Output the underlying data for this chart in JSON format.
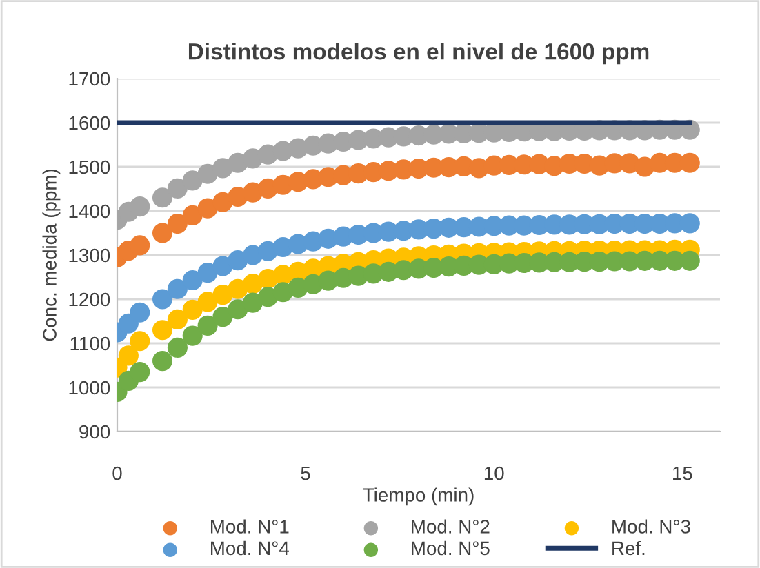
{
  "chart_data": {
    "type": "scatter",
    "title": "Distintos modelos en el nivel de 1600 ppm",
    "xlabel": "Tiempo (min)",
    "ylabel": "Conc. medida (ppm)",
    "x": [
      0,
      0.3,
      0.6,
      1.2,
      1.6,
      2.0,
      2.4,
      2.8,
      3.2,
      3.6,
      4.0,
      4.4,
      4.8,
      5.2,
      5.6,
      6.0,
      6.4,
      6.8,
      7.2,
      7.6,
      8.0,
      8.4,
      8.8,
      9.2,
      9.6,
      10.0,
      10.4,
      10.8,
      11.2,
      11.6,
      12.0,
      12.4,
      12.8,
      13.2,
      13.6,
      14.0,
      14.4,
      14.8,
      15.2
    ],
    "series": [
      {
        "name": "Mod. N°1",
        "color": "#ed7d31",
        "values": [
          1295,
          1310,
          1322,
          1350,
          1371,
          1390,
          1406,
          1420,
          1432,
          1442,
          1451,
          1459,
          1466,
          1472,
          1477,
          1481,
          1485,
          1488,
          1491,
          1494,
          1496,
          1498,
          1499,
          1501,
          1497,
          1503,
          1504,
          1505,
          1506,
          1502,
          1507,
          1507,
          1503,
          1508,
          1508,
          1500,
          1509,
          1509,
          1509
        ]
      },
      {
        "name": "Mod. N°2",
        "color": "#a5a5a5",
        "values": [
          1380,
          1398,
          1410,
          1430,
          1451,
          1469,
          1484,
          1497,
          1509,
          1519,
          1528,
          1536,
          1542,
          1548,
          1553,
          1557,
          1561,
          1564,
          1567,
          1569,
          1571,
          1573,
          1575,
          1576,
          1577,
          1578,
          1579,
          1580,
          1581,
          1581,
          1582,
          1582,
          1583,
          1583,
          1583,
          1583,
          1584,
          1584,
          1584
        ]
      },
      {
        "name": "Mod. N°3",
        "color": "#ffc000",
        "values": [
          1045,
          1072,
          1105,
          1130,
          1154,
          1176,
          1194,
          1210,
          1223,
          1235,
          1246,
          1255,
          1262,
          1269,
          1275,
          1280,
          1284,
          1288,
          1292,
          1294,
          1297,
          1299,
          1301,
          1303,
          1304,
          1305,
          1306,
          1307,
          1308,
          1309,
          1309,
          1310,
          1310,
          1310,
          1311,
          1311,
          1311,
          1312,
          1312
        ]
      },
      {
        "name": "Mod. N°4",
        "color": "#5b9bd5",
        "values": [
          1125,
          1145,
          1170,
          1200,
          1223,
          1243,
          1260,
          1275,
          1288,
          1300,
          1309,
          1318,
          1325,
          1331,
          1337,
          1342,
          1346,
          1350,
          1353,
          1355,
          1358,
          1360,
          1362,
          1363,
          1364,
          1366,
          1367,
          1367,
          1368,
          1369,
          1369,
          1370,
          1370,
          1371,
          1371,
          1371,
          1371,
          1372,
          1372
        ]
      },
      {
        "name": "Mod. N°5",
        "color": "#70ad47",
        "values": [
          990,
          1015,
          1035,
          1060,
          1090,
          1117,
          1140,
          1160,
          1177,
          1192,
          1205,
          1216,
          1226,
          1234,
          1242,
          1248,
          1253,
          1258,
          1262,
          1266,
          1269,
          1271,
          1274,
          1276,
          1278,
          1279,
          1281,
          1282,
          1283,
          1284,
          1284,
          1285,
          1285,
          1286,
          1286,
          1287,
          1287,
          1287,
          1287
        ]
      },
      {
        "name": "Ref.",
        "type": "line",
        "marker": "none",
        "color": "#203864",
        "x": [
          0,
          15.2
        ],
        "values": [
          1600,
          1600
        ]
      }
    ],
    "xlim": [
      0,
      16
    ],
    "xticks": [
      0,
      5,
      10,
      15
    ],
    "ylim": [
      900,
      1700
    ],
    "yticks": [
      900,
      1000,
      1100,
      1200,
      1300,
      1400,
      1500,
      1600,
      1700
    ],
    "grid": "y",
    "legend": "bottom",
    "marker": "circle"
  }
}
